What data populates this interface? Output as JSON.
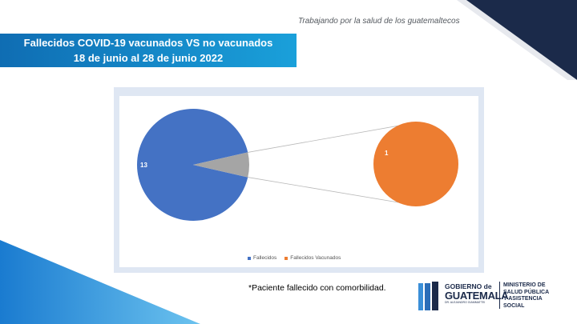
{
  "header": {
    "tagline": "Trabajando por la salud de los guatemaltecos",
    "title_line1": "Fallecidos COVID-19 vacunados VS no vacunados",
    "title_line2": "18 de junio al 28 de junio 2022"
  },
  "chart_data": {
    "type": "pie",
    "categories": [
      "Fallecidos",
      "Fallecidos Vacunados"
    ],
    "values": [
      13,
      1
    ],
    "data_labels": [
      "13",
      "1"
    ],
    "legend": [
      "Fallecidos",
      "Fallecidos Vacunados"
    ],
    "legend_position": "bottom",
    "colors": [
      "#4472c4",
      "#ed7d31",
      "#a5a5a5"
    ]
  },
  "footnote": "*Paciente fallecido con comorbilidad.",
  "logo": {
    "gov_line1": "GOBIERNO de",
    "gov_line2": "GUATEMALA",
    "gov_line3": "DR. ALEJANDRO GIAMMATTEI",
    "ministry": "MINISTERIO DE\nSALUD PÚBLICA\nY ASISTENCIA\nSOCIAL"
  },
  "colors": {
    "banner": "#1aa0da",
    "corner_dark": "#1b2a4a",
    "corner_light": "#2a8fd6"
  }
}
